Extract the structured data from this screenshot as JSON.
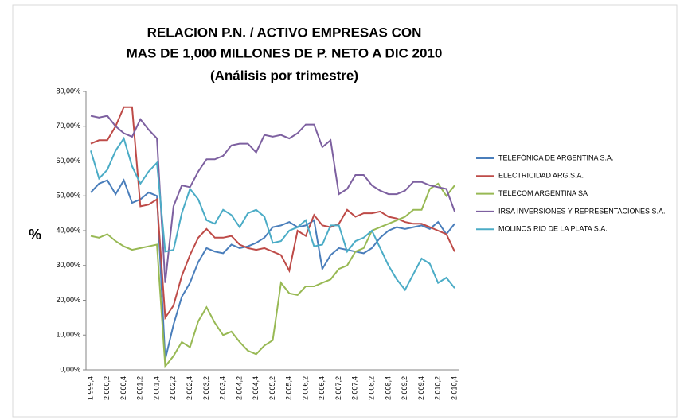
{
  "chart_data": {
    "type": "line",
    "title": [
      "RELACION P.N. / ACTIVO EMPRESAS CON",
      "MAS DE 1,000 MILLONES DE P. NETO A DIC 2010",
      "(Análisis por trimestre)"
    ],
    "y_label": "%",
    "categories": [
      "1.999,4",
      null,
      "2.000,2",
      null,
      "2.000,4",
      null,
      "2.001,2",
      null,
      "2.001,4",
      null,
      "2.002,2",
      null,
      "2.002,4",
      null,
      "2.003,2",
      null,
      "2.003,4",
      null,
      "2.004,2",
      null,
      "2.004,4",
      null,
      "2.005,2",
      null,
      "2.005,4",
      null,
      "2.006,2",
      null,
      "2.006,4",
      null,
      "2.007,2",
      null,
      "2.007,4",
      null,
      "2.008,2",
      null,
      "2.008,4",
      null,
      "2.009,2",
      null,
      "2.009,4",
      null,
      "2.010,2",
      null,
      "2.010,4"
    ],
    "series": [
      {
        "name": "TELEFÓNICA DE ARGENTINA S.A.",
        "color": "#4a7ebb",
        "values": [
          51,
          53.5,
          54.5,
          50.5,
          54.5,
          48,
          49,
          51,
          50,
          3,
          13,
          21,
          25,
          31,
          35,
          34,
          33.5,
          36,
          35,
          35.5,
          36.5,
          38,
          41,
          41.5,
          42.5,
          41,
          41.5,
          43,
          29,
          33,
          35,
          34.5,
          34,
          33.5,
          35,
          38,
          40,
          41,
          40.5,
          41,
          41.5,
          40.5,
          42.5,
          39,
          42
        ]
      },
      {
        "name": "ELECTRICIDAD ARG.S.A.",
        "color": "#be4b48",
        "values": [
          65,
          66,
          66,
          70,
          75.5,
          75.5,
          47,
          47.5,
          49,
          15,
          18.5,
          27,
          33,
          38,
          40.5,
          38,
          38,
          38.5,
          36,
          35,
          34.5,
          35,
          34,
          33,
          28.5,
          40,
          38.5,
          44.5,
          41.5,
          41,
          42,
          46,
          44,
          45,
          45,
          45.5,
          44,
          43.5,
          42.5,
          42,
          42,
          41,
          40,
          39,
          34
        ]
      },
      {
        "name": "TELECOM ARGENTINA SA",
        "color": "#98b954",
        "values": [
          38.5,
          38,
          39,
          37,
          35.5,
          34.5,
          35,
          35.5,
          36,
          1,
          4,
          8,
          6.5,
          14,
          18,
          13.5,
          10,
          11,
          8,
          5.5,
          4.5,
          7,
          8.5,
          25,
          22,
          21.5,
          24,
          24,
          25,
          26,
          29,
          30,
          34,
          35,
          40,
          41,
          42,
          43,
          44,
          46,
          46,
          52,
          53.5,
          50,
          53
        ]
      },
      {
        "name": "IRSA INVERSIONES Y REPRESENTACIONES S.A.",
        "color": "#7d60a0",
        "values": [
          73,
          72.5,
          73,
          70,
          68,
          67,
          72,
          69,
          66.5,
          25,
          47,
          53,
          52.5,
          57,
          60.5,
          60.5,
          61.5,
          64.5,
          65,
          65,
          62.5,
          67.5,
          67,
          67.5,
          66.5,
          68,
          70.5,
          70.5,
          64,
          66,
          50.5,
          52,
          56,
          56,
          53,
          51.5,
          50.5,
          50.5,
          51.5,
          54,
          54,
          53,
          52.5,
          52,
          45.5
        ]
      },
      {
        "name": "MOLINOS RIO DE LA PLATA S.A.",
        "color": "#4bacc6",
        "values": [
          63,
          55,
          57.5,
          63,
          66.5,
          58.5,
          53.5,
          57,
          59.5,
          34,
          34.5,
          45,
          52,
          49,
          43,
          42,
          46,
          44.5,
          41,
          45,
          46,
          44,
          36.5,
          37,
          40,
          41,
          43,
          35.5,
          36,
          41.5,
          41.5,
          34,
          37,
          38,
          40,
          35,
          30,
          26,
          23,
          27.5,
          32,
          30.5,
          25,
          26.5,
          23.5
        ]
      }
    ],
    "ylim": [
      0,
      80
    ],
    "yticks": [
      {
        "value": 0,
        "label": "0,00%"
      },
      {
        "value": 10,
        "label": "10,00%"
      },
      {
        "value": 20,
        "label": "20,00%"
      },
      {
        "value": 30,
        "label": "30,00%"
      },
      {
        "value": 40,
        "label": "40,00%"
      },
      {
        "value": 50,
        "label": "50,00%"
      },
      {
        "value": 60,
        "label": "60,00%"
      },
      {
        "value": 70,
        "label": "70,00%"
      },
      {
        "value": 80,
        "label": "80,00%"
      }
    ],
    "legend": "right",
    "grid": false
  }
}
